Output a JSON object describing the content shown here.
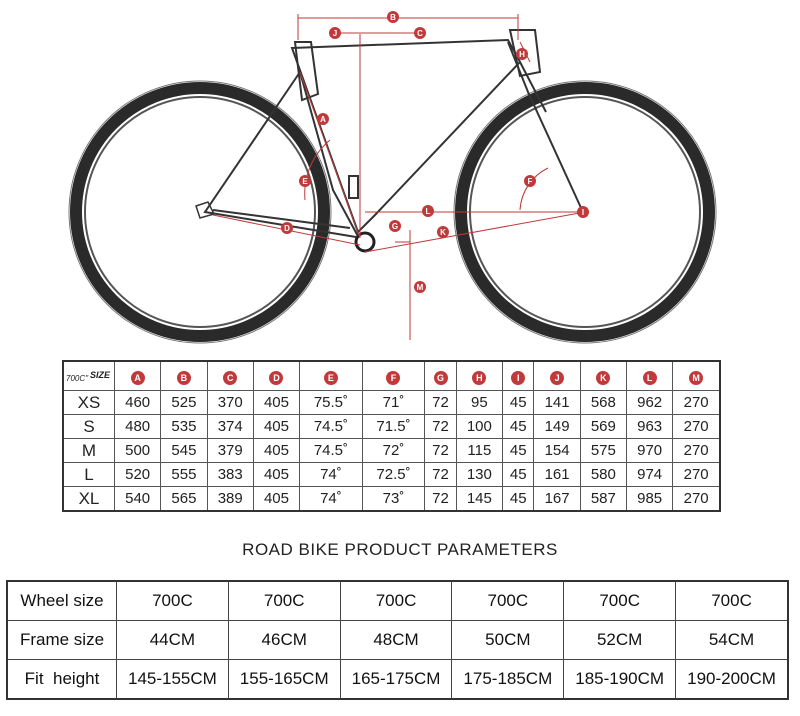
{
  "diagram": {
    "markers": [
      "A",
      "B",
      "C",
      "D",
      "E",
      "F",
      "G",
      "H",
      "I",
      "J",
      "K",
      "L",
      "M"
    ]
  },
  "geometry_table": {
    "corner_size": "SIZE",
    "corner_wheel": "700C''",
    "columns": [
      "A",
      "B",
      "C",
      "D",
      "E",
      "F",
      "G",
      "H",
      "I",
      "J",
      "K",
      "L",
      "M"
    ],
    "rows": [
      {
        "size": "XS",
        "values": [
          "460",
          "525",
          "370",
          "405",
          "75.5˚",
          "71˚",
          "72",
          "95",
          "45",
          "141",
          "568",
          "962",
          "270"
        ]
      },
      {
        "size": "S",
        "values": [
          "480",
          "535",
          "374",
          "405",
          "74.5˚",
          "71.5˚",
          "72",
          "100",
          "45",
          "149",
          "569",
          "963",
          "270"
        ]
      },
      {
        "size": "M",
        "values": [
          "500",
          "545",
          "379",
          "405",
          "74.5˚",
          "72˚",
          "72",
          "115",
          "45",
          "154",
          "575",
          "970",
          "270"
        ]
      },
      {
        "size": "L",
        "values": [
          "520",
          "555",
          "383",
          "405",
          "74˚",
          "72.5˚",
          "72",
          "130",
          "45",
          "161",
          "580",
          "974",
          "270"
        ]
      },
      {
        "size": "XL",
        "values": [
          "540",
          "565",
          "389",
          "405",
          "74˚",
          "73˚",
          "72",
          "145",
          "45",
          "167",
          "587",
          "985",
          "270"
        ]
      }
    ]
  },
  "params_title": "ROAD BIKE PRODUCT PARAMETERS",
  "params_table": {
    "rows": [
      {
        "label": "Wheel size",
        "values": [
          "700C",
          "700C",
          "700C",
          "700C",
          "700C",
          "700C"
        ]
      },
      {
        "label": "Frame size",
        "values": [
          "44CM",
          "46CM",
          "48CM",
          "50CM",
          "52CM",
          "54CM"
        ]
      },
      {
        "label": "Fit  height",
        "values": [
          "145-155CM",
          "155-165CM",
          "165-175CM",
          "175-185CM",
          "185-190CM",
          "190-200CM"
        ]
      }
    ]
  },
  "colors": {
    "accent": "#c0393b",
    "tire": "#2a2a2a"
  }
}
